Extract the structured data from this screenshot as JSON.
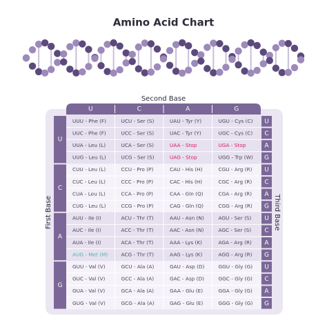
{
  "title": "Amino Acid Chart",
  "labels": {
    "second_base": "Second Base",
    "first_base": "First Base",
    "third_base": "Third Base"
  },
  "table": {
    "second_base": [
      "U",
      "C",
      "A",
      "G"
    ],
    "first_base": [
      "U",
      "C",
      "A",
      "G"
    ],
    "third_base": [
      "U",
      "C",
      "A",
      "G"
    ],
    "rows": [
      [
        "UUU - Phe (F)",
        "UCU - Ser (S)",
        "UAU - Tyr (Y)",
        "UGU - Cys (C)"
      ],
      [
        "UUC - Phe (F)",
        "UCC - Ser (S)",
        "UAC - Tyr (Y)",
        "UGC - Cys (C)"
      ],
      [
        "UUA - Leu (L)",
        "UCA - Ser (S)",
        "UAA - Stop",
        "UGA - Stop"
      ],
      [
        "UUG - Leu (L)",
        "UCG - Ser (S)",
        "UAG - Stop",
        "UGG - Trp (W)"
      ],
      [
        "CUU - Leu (L)",
        "CCU - Pro (P)",
        "CAU - His (H)",
        "CGU - Arg (R)"
      ],
      [
        "CUC - Leu (L)",
        "CCC - Pro (P)",
        "CAC - His (H)",
        "CGC - Arg (R)"
      ],
      [
        "CUA - Leu (L)",
        "CCA - Pro (P)",
        "CAA - Gln (Q)",
        "CGA - Arg (R)"
      ],
      [
        "CUG - Leu (L)",
        "CCG - Pro (P)",
        "CAG - Gln (Q)",
        "CGG - Arg (R)"
      ],
      [
        "AUU - Ile (I)",
        "ACU - Thr (T)",
        "AAU - Asn (N)",
        "AGU - Ser (S)"
      ],
      [
        "AUC - Ile (I)",
        "ACC - Thr (T)",
        "AAC - Asn (N)",
        "AGC - Ser (S)"
      ],
      [
        "AUA - Ile (I)",
        "ACA - Thr (T)",
        "AAA - Lys (K)",
        "AGA - Arg (R)"
      ],
      [
        "AUG - Met (M)",
        "ACG - Thr (T)",
        "AAG - Lys (K)",
        "AGG - Arg (R)"
      ],
      [
        "GUU - Val (V)",
        "GCU - Ala (A)",
        "GAU - Asp (D)",
        "GGU - Gly (G)"
      ],
      [
        "GUC - Val (V)",
        "GCC - Ala (A)",
        "GAC - Asp (D)",
        "GGC - Gly (G)"
      ],
      [
        "GUA - Val (V)",
        "GCA - Ala (A)",
        "GAA - Glu (E)",
        "GGA - Gly (G)"
      ],
      [
        "GUG - Val (V)",
        "GCG - Ala (A)",
        "GAG - Glu (E)",
        "GGG - Gly (G)"
      ]
    ]
  }
}
